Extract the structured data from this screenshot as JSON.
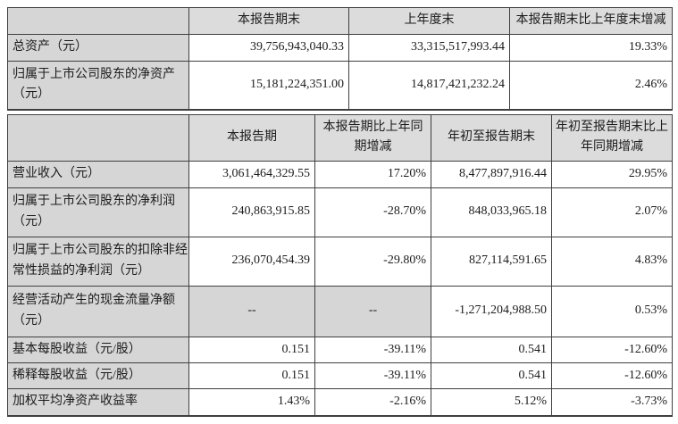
{
  "table1": {
    "headers": [
      "",
      "本报告期末",
      "上年度末",
      "本报告期末比上年度末增减"
    ],
    "rows": [
      {
        "label": "总资产（元）",
        "values": [
          "39,756,943,040.33",
          "33,315,517,993.44",
          "19.33%"
        ]
      },
      {
        "label": "归属于上市公司股东的净资产（元）",
        "values": [
          "15,181,224,351.00",
          "14,817,421,232.24",
          "2.46%"
        ]
      }
    ]
  },
  "table2": {
    "headers": [
      "",
      "本报告期",
      "本报告期比上年同期增减",
      "年初至报告期末",
      "年初至报告期末比上年同期增减"
    ],
    "rows": [
      {
        "label": "营业收入（元）",
        "values": [
          "3,061,464,329.55",
          "17.20%",
          "8,477,897,916.44",
          "29.95%"
        ]
      },
      {
        "label": "归属于上市公司股东的净利润（元）",
        "values": [
          "240,863,915.85",
          "-28.70%",
          "848,033,965.18",
          "2.07%"
        ]
      },
      {
        "label": "归属于上市公司股东的扣除非经常性损益的净利润（元）",
        "values": [
          "236,070,454.39",
          "-29.80%",
          "827,114,591.65",
          "4.83%"
        ]
      },
      {
        "label": "经营活动产生的现金流量净额（元）",
        "values": [
          "--",
          "--",
          "-1,271,204,988.50",
          "0.53%"
        ]
      },
      {
        "label": "基本每股收益（元/股）",
        "values": [
          "0.151",
          "-39.11%",
          "0.541",
          "-12.60%"
        ]
      },
      {
        "label": "稀释每股收益（元/股）",
        "values": [
          "0.151",
          "-39.11%",
          "0.541",
          "-12.60%"
        ]
      },
      {
        "label": "加权平均净资产收益率",
        "values": [
          "1.43%",
          "-2.16%",
          "5.12%",
          "-3.73%"
        ]
      }
    ]
  },
  "colors": {
    "header_cell_bg": "#dcdcdc",
    "label_cell_bg": "#d6d6d6",
    "data_cell_bg": "#ffffff",
    "border": "#3f3f3f",
    "text": "#1c1c1c"
  }
}
